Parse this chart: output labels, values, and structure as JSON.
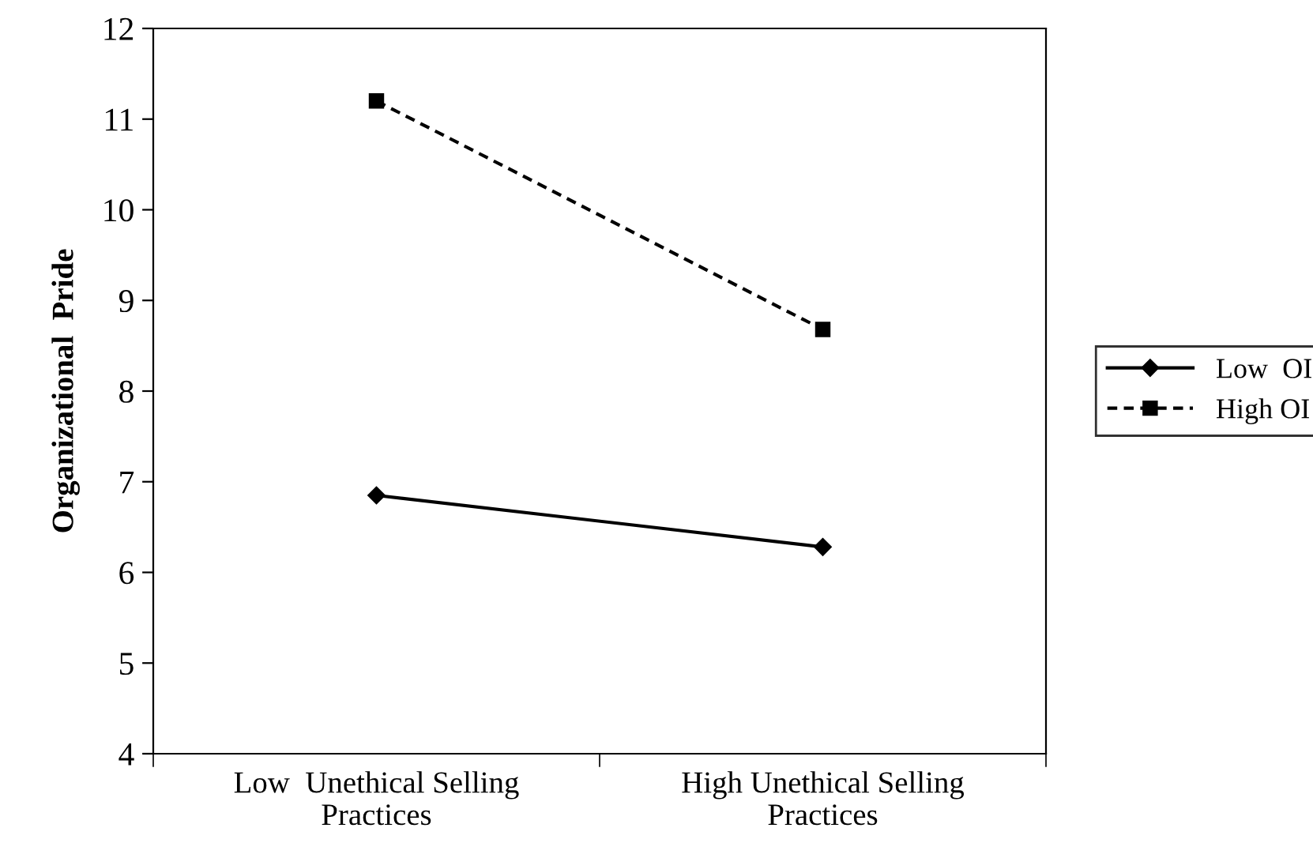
{
  "chart_data": {
    "type": "line",
    "ylabel": "Organizational  Pride",
    "categories": [
      "Low  Unethical Selling\nPractices",
      "High Unethical Selling\nPractices"
    ],
    "series": [
      {
        "name": "Low  OI",
        "color": "#000000",
        "values": [
          6.85,
          6.28
        ],
        "marker": "diamond",
        "line_style": "solid"
      },
      {
        "name": "High OI",
        "color": "#000000",
        "values": [
          11.2,
          8.68
        ],
        "marker": "square",
        "line_style": "dashed"
      }
    ],
    "ylim": [
      4,
      12
    ],
    "yticks": [
      4,
      5,
      6,
      7,
      8,
      9,
      10,
      11,
      12
    ],
    "grid": false,
    "legend": "right"
  }
}
